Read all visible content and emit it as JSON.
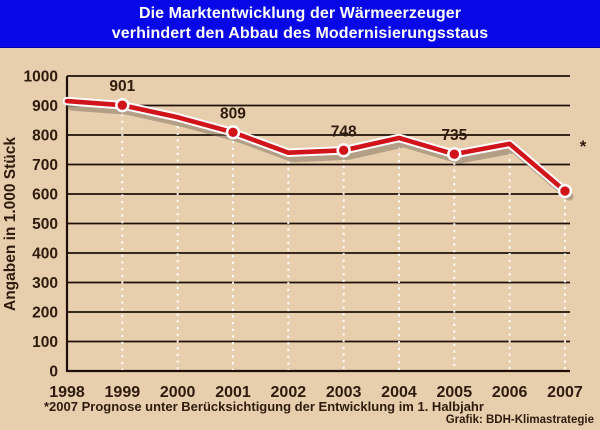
{
  "header": {
    "title_line1": "Die Marktentwicklung der Wärmeerzeuger",
    "title_line2": "verhindert den Abbau des Modernisierungsstaus"
  },
  "chart_data": {
    "type": "line",
    "title": "Die Marktentwicklung der Wärmeerzeuger verhindert den Abbau des Modernisierungsstaus",
    "xlabel": "",
    "ylabel": "Angaben in 1.000 Stück",
    "categories": [
      "1998",
      "1999",
      "2000",
      "2001",
      "2002",
      "2003",
      "2004",
      "2005",
      "2006",
      "2007"
    ],
    "values": [
      915,
      901,
      860,
      809,
      740,
      748,
      790,
      735,
      770,
      610
    ],
    "ylim": [
      0,
      1000
    ],
    "ytick_step": 100,
    "grid": "horizontal solid dark lines, white dotted vertical drop lines under the curve",
    "legend": "none",
    "marker_years": [
      "1999",
      "2001",
      "2003",
      "2005",
      "2007"
    ],
    "point_labels": [
      {
        "year": "1999",
        "text": "901"
      },
      {
        "year": "2001",
        "text": "809"
      },
      {
        "year": "2003",
        "text": "748"
      },
      {
        "year": "2005",
        "text": "735"
      },
      {
        "year": "2007",
        "text": "*"
      }
    ]
  },
  "annotations": {
    "asterisk_marker": "*",
    "footnote": "*2007 Prognose unter Berücksichtigung der Entwicklung im 1. Halbjahr",
    "credit": "Grafik: BDH-Klimastrategie"
  },
  "colors": {
    "background": "#e7cfae",
    "title_bg": "#0707e8",
    "title_text": "#ffffff",
    "line_red": "#d01419",
    "line_casing": "#ffffff",
    "line_shadow": "#7d6f5c",
    "grid_dark": "#1e1007",
    "text_dark": "#2e1b0c",
    "dropline_white": "#ffffff"
  }
}
